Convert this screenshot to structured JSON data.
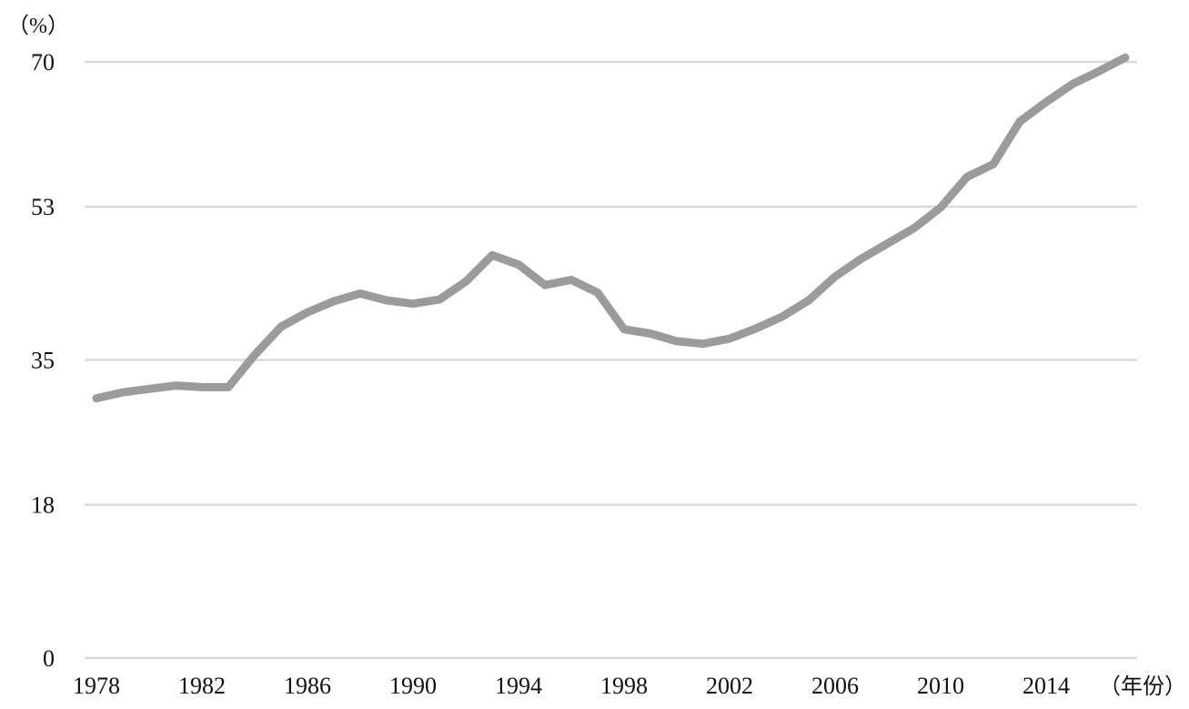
{
  "chart_data": {
    "type": "line",
    "title": "",
    "ylabel": "（%）",
    "xlabel": "（年份）",
    "ylim": [
      0,
      70
    ],
    "yticks": [
      0,
      18,
      35,
      53,
      70
    ],
    "xticks": [
      1978,
      1982,
      1986,
      1990,
      1994,
      1998,
      2002,
      2006,
      2010,
      2014
    ],
    "grid": true,
    "line_color": "#9b9b9b",
    "grid_color": "#d9d9d9",
    "x": [
      1978,
      1979,
      1980,
      1981,
      1982,
      1983,
      1984,
      1985,
      1986,
      1987,
      1988,
      1989,
      1990,
      1991,
      1992,
      1993,
      1994,
      1995,
      1996,
      1997,
      1998,
      1999,
      2000,
      2001,
      2002,
      2003,
      2004,
      2005,
      2006,
      2007,
      2008,
      2009,
      2010,
      2011,
      2012,
      2013,
      2014,
      2015,
      2016,
      2017
    ],
    "values": [
      30.5,
      31.2,
      31.6,
      32.0,
      31.8,
      31.8,
      35.6,
      38.9,
      40.6,
      41.9,
      42.8,
      42.0,
      41.6,
      42.1,
      44.2,
      47.3,
      46.2,
      43.8,
      44.4,
      42.9,
      38.6,
      38.1,
      37.2,
      36.9,
      37.5,
      38.7,
      40.1,
      42.0,
      44.8,
      46.9,
      48.7,
      50.5,
      52.9,
      56.5,
      58.0,
      63.0,
      65.3,
      67.4,
      68.9,
      70.5
    ]
  }
}
